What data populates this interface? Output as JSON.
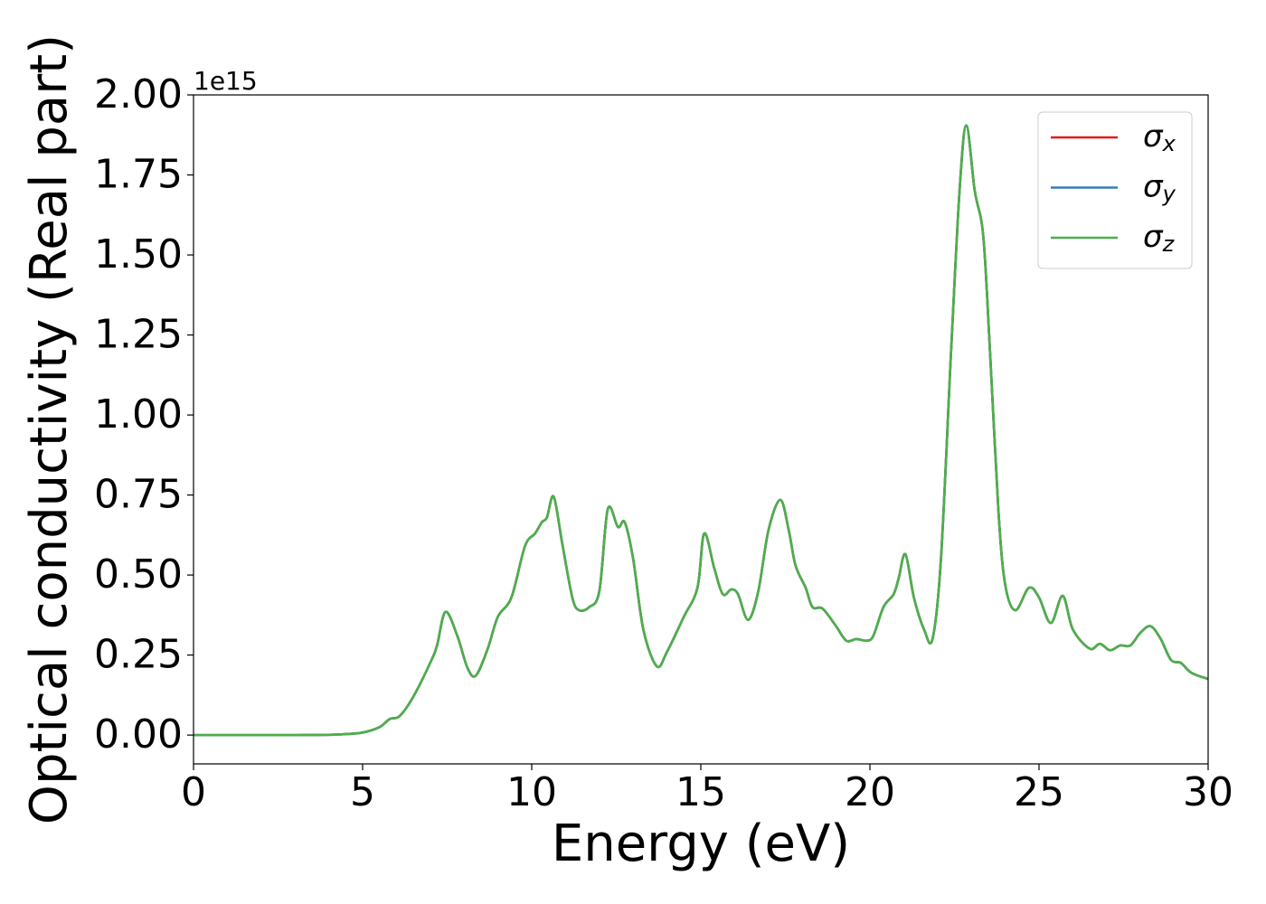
{
  "chart_data": {
    "type": "line",
    "xlabel": "Energy (eV)",
    "ylabel": "Optical conductivity (Real part)",
    "y_offset_text": "1e15",
    "x": [
      0,
      1,
      2,
      3,
      4,
      4.5,
      5,
      5.5,
      5.8,
      6.1,
      6.5,
      7.0,
      7.2,
      7.45,
      7.8,
      8.1,
      8.35,
      8.7,
      9.0,
      9.4,
      9.8,
      10.1,
      10.3,
      10.45,
      10.65,
      10.9,
      11.2,
      11.4,
      11.7,
      12.0,
      12.25,
      12.55,
      12.75,
      13.0,
      13.3,
      13.7,
      14.0,
      14.5,
      14.9,
      15.1,
      15.4,
      15.65,
      15.9,
      16.1,
      16.4,
      16.7,
      17.0,
      17.35,
      17.6,
      17.8,
      18.1,
      18.3,
      18.6,
      19.0,
      19.3,
      19.6,
      19.9,
      20.1,
      20.4,
      20.7,
      20.85,
      21.05,
      21.3,
      21.6,
      21.85,
      22.1,
      22.4,
      22.65,
      22.85,
      23.1,
      23.35,
      23.55,
      23.8,
      24.0,
      24.3,
      24.7,
      25.0,
      25.35,
      25.7,
      26.0,
      26.5,
      26.8,
      27.1,
      27.4,
      27.7,
      28.0,
      28.3,
      28.6,
      28.9,
      29.2,
      29.5,
      30.0
    ],
    "series": [
      {
        "name": "σx",
        "color": "#e41a1c",
        "values": [
          0,
          0,
          0,
          0,
          0.001,
          0.003,
          0.008,
          0.025,
          0.05,
          0.06,
          0.12,
          0.226,
          0.28,
          0.385,
          0.31,
          0.21,
          0.186,
          0.27,
          0.37,
          0.43,
          0.59,
          0.63,
          0.665,
          0.68,
          0.745,
          0.6,
          0.43,
          0.39,
          0.4,
          0.45,
          0.706,
          0.65,
          0.665,
          0.55,
          0.33,
          0.215,
          0.26,
          0.37,
          0.46,
          0.63,
          0.52,
          0.44,
          0.455,
          0.44,
          0.36,
          0.45,
          0.64,
          0.735,
          0.64,
          0.53,
          0.46,
          0.4,
          0.395,
          0.34,
          0.295,
          0.3,
          0.295,
          0.31,
          0.4,
          0.44,
          0.49,
          0.565,
          0.43,
          0.33,
          0.3,
          0.55,
          1.2,
          1.7,
          1.905,
          1.7,
          1.56,
          1.2,
          0.7,
          0.47,
          0.39,
          0.46,
          0.43,
          0.35,
          0.435,
          0.33,
          0.27,
          0.285,
          0.265,
          0.28,
          0.28,
          0.32,
          0.34,
          0.3,
          0.235,
          0.225,
          0.195,
          0.175
        ]
      },
      {
        "name": "σy",
        "color": "#377eb8",
        "values": [
          0,
          0,
          0,
          0,
          0.001,
          0.003,
          0.008,
          0.025,
          0.05,
          0.06,
          0.12,
          0.226,
          0.28,
          0.385,
          0.31,
          0.21,
          0.186,
          0.27,
          0.37,
          0.43,
          0.59,
          0.63,
          0.665,
          0.68,
          0.745,
          0.6,
          0.43,
          0.39,
          0.4,
          0.45,
          0.706,
          0.65,
          0.665,
          0.55,
          0.33,
          0.215,
          0.26,
          0.37,
          0.46,
          0.63,
          0.52,
          0.44,
          0.455,
          0.44,
          0.36,
          0.45,
          0.64,
          0.735,
          0.64,
          0.53,
          0.46,
          0.4,
          0.395,
          0.34,
          0.295,
          0.3,
          0.295,
          0.31,
          0.4,
          0.44,
          0.49,
          0.565,
          0.43,
          0.33,
          0.3,
          0.55,
          1.2,
          1.7,
          1.905,
          1.7,
          1.56,
          1.2,
          0.7,
          0.47,
          0.39,
          0.46,
          0.43,
          0.35,
          0.435,
          0.33,
          0.27,
          0.285,
          0.265,
          0.28,
          0.28,
          0.32,
          0.34,
          0.3,
          0.235,
          0.225,
          0.195,
          0.175
        ]
      },
      {
        "name": "σz",
        "color": "#4daf4a",
        "values": [
          0,
          0,
          0,
          0,
          0.001,
          0.003,
          0.008,
          0.025,
          0.05,
          0.06,
          0.12,
          0.226,
          0.28,
          0.385,
          0.31,
          0.21,
          0.186,
          0.27,
          0.37,
          0.43,
          0.59,
          0.63,
          0.665,
          0.68,
          0.745,
          0.6,
          0.43,
          0.39,
          0.4,
          0.45,
          0.706,
          0.65,
          0.665,
          0.55,
          0.33,
          0.215,
          0.26,
          0.37,
          0.46,
          0.63,
          0.52,
          0.44,
          0.455,
          0.44,
          0.36,
          0.45,
          0.64,
          0.735,
          0.64,
          0.53,
          0.46,
          0.4,
          0.395,
          0.34,
          0.295,
          0.3,
          0.295,
          0.31,
          0.4,
          0.44,
          0.49,
          0.565,
          0.43,
          0.33,
          0.3,
          0.55,
          1.2,
          1.7,
          1.905,
          1.7,
          1.56,
          1.2,
          0.7,
          0.47,
          0.39,
          0.46,
          0.43,
          0.35,
          0.435,
          0.33,
          0.27,
          0.285,
          0.265,
          0.28,
          0.28,
          0.32,
          0.34,
          0.3,
          0.235,
          0.225,
          0.195,
          0.175
        ]
      }
    ],
    "xlim": [
      0,
      30
    ],
    "xticks": [
      0,
      5,
      10,
      15,
      20,
      25,
      30
    ],
    "ylim": [
      -0.09,
      2.0
    ],
    "yticks": [
      {
        "value": 0,
        "label": "0.00"
      },
      0.25,
      {
        "value": 0.5,
        "label": "0.50"
      },
      0.75,
      {
        "value": 1,
        "label": "1.00"
      },
      1.25,
      {
        "value": 1.5,
        "label": "1.50"
      },
      1.75,
      {
        "value": 2,
        "label": "2.00"
      }
    ],
    "grid": false,
    "legend": "upper right"
  }
}
